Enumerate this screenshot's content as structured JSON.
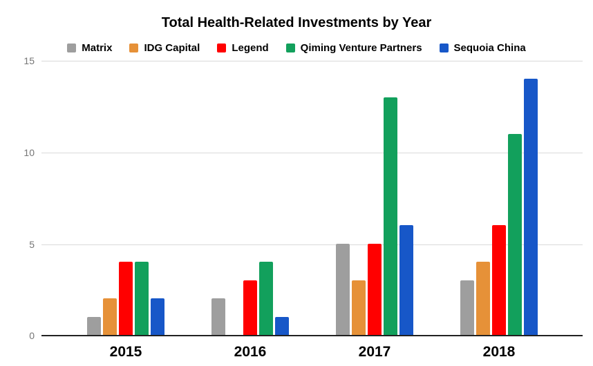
{
  "title": "Total Health-Related Investments by Year",
  "chart_data": {
    "type": "bar",
    "title": "Total Health-Related Investments by Year",
    "categories": [
      "2015",
      "2016",
      "2017",
      "2018"
    ],
    "series": [
      {
        "name": "Matrix",
        "color": "#9e9e9e",
        "values": [
          1,
          2,
          5,
          3
        ]
      },
      {
        "name": "IDG Capital",
        "color": "#e69138",
        "values": [
          2,
          0,
          3,
          4
        ]
      },
      {
        "name": "Legend",
        "color": "#ff0000",
        "values": [
          4,
          3,
          5,
          6
        ]
      },
      {
        "name": "Qiming Venture Partners",
        "color": "#12a05c",
        "values": [
          4,
          4,
          13,
          11
        ]
      },
      {
        "name": "Sequoia China",
        "color": "#1757c8",
        "values": [
          2,
          1,
          6,
          14
        ]
      }
    ],
    "xlabel": "",
    "ylabel": "",
    "ylim": [
      0,
      15
    ],
    "yticks": [
      "15",
      "10",
      "5",
      "0"
    ],
    "grid": true,
    "legend_position": "top"
  },
  "colors": {
    "background": "#ffffff",
    "gridline": "#d9d9d9",
    "axis_line": "#212121",
    "tick_label": "#757575",
    "text": "#000000"
  }
}
